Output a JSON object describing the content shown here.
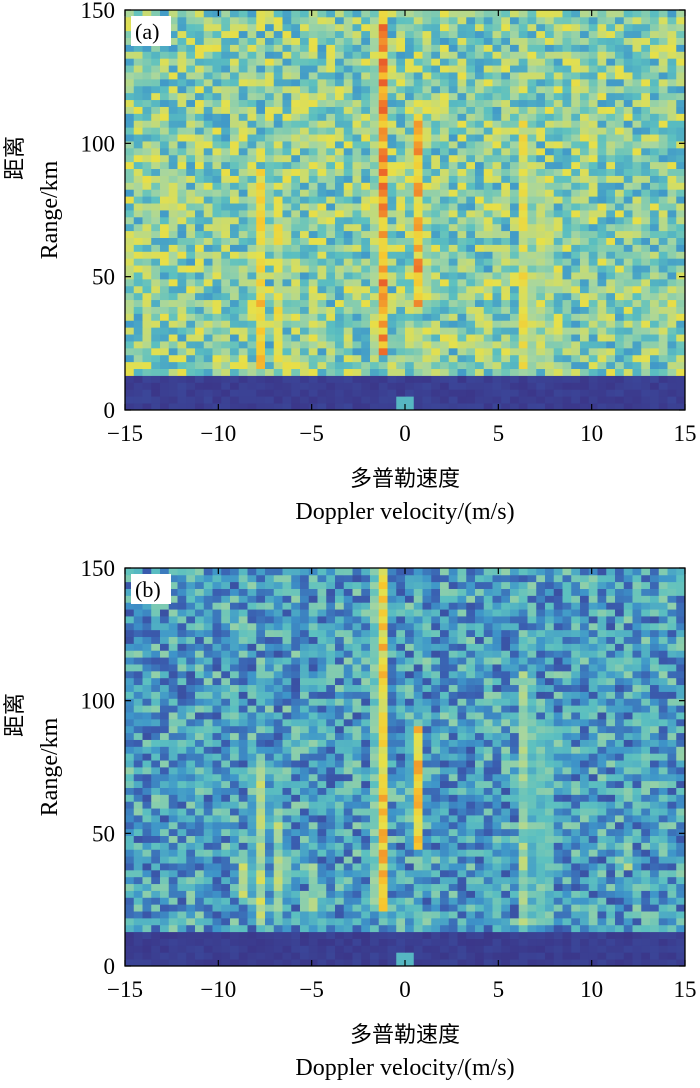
{
  "chart_data": [
    {
      "type": "heatmap",
      "panel_label": "(a)",
      "xlabel_cn": "多普勒速度",
      "xlabel": "Doppler velocity/(m/s)",
      "ylabel_cn": "距离",
      "ylabel": "Range/km",
      "xlim": [
        -15,
        15
      ],
      "ylim": [
        0,
        150
      ],
      "x_ticks": [
        "−15",
        "−10",
        "−5",
        "0",
        "5",
        "10",
        "15"
      ],
      "y_ticks": [
        "0",
        "50",
        "100",
        "150"
      ],
      "x_tick_values": [
        -15,
        -10,
        -5,
        0,
        5,
        10,
        15
      ],
      "y_tick_values": [
        0,
        50,
        100,
        150
      ],
      "colormap": [
        "#3b2f82",
        "#3a5eb0",
        "#3e95c9",
        "#5cc0c0",
        "#a6d6a0",
        "#e6e04a",
        "#f7c72e",
        "#ee6f2a",
        "#d7262b"
      ],
      "background_level": 0.45,
      "clutter_band_km": [
        0,
        12
      ],
      "ridges": [
        {
          "doppler": -1.3,
          "width": 0.45,
          "range": [
            20,
            150
          ],
          "peak": 0.95
        },
        {
          "doppler": 0.6,
          "width": 0.4,
          "range": [
            40,
            110
          ],
          "peak": 0.9
        },
        {
          "doppler": -7.8,
          "width": 0.45,
          "range": [
            15,
            90
          ],
          "peak": 0.78
        },
        {
          "doppler": -6.7,
          "width": 0.4,
          "range": [
            15,
            75
          ],
          "peak": 0.7
        },
        {
          "doppler": 6.5,
          "width": 0.45,
          "range": [
            15,
            110
          ],
          "peak": 0.8
        },
        {
          "doppler": 7.5,
          "width": 0.4,
          "range": [
            15,
            90
          ],
          "peak": 0.78
        },
        {
          "doppler": -4.8,
          "width": 0.35,
          "range": [
            20,
            50
          ],
          "peak": 0.7
        },
        {
          "doppler": 4.3,
          "width": 0.35,
          "range": [
            15,
            35
          ],
          "peak": 0.7
        },
        {
          "doppler": 11.8,
          "width": 0.3,
          "range": [
            42,
            55
          ],
          "peak": 0.72
        }
      ]
    },
    {
      "type": "heatmap",
      "panel_label": "(b)",
      "xlabel_cn": "多普勒速度",
      "xlabel": "Doppler velocity/(m/s)",
      "ylabel_cn": "距离",
      "ylabel": "Range/km",
      "xlim": [
        -15,
        15
      ],
      "ylim": [
        0,
        150
      ],
      "x_ticks": [
        "−15",
        "−10",
        "−5",
        "0",
        "5",
        "10",
        "15"
      ],
      "y_ticks": [
        "0",
        "50",
        "100",
        "150"
      ],
      "x_tick_values": [
        -15,
        -10,
        -5,
        0,
        5,
        10,
        15
      ],
      "y_tick_values": [
        0,
        50,
        100,
        150
      ],
      "colormap": [
        "#3b2f82",
        "#3a5eb0",
        "#3e95c9",
        "#5cc0c0",
        "#a6d6a0",
        "#e6e04a",
        "#f7c72e",
        "#ee6f2a",
        "#d7262b"
      ],
      "background_level": 0.28,
      "clutter_band_km": [
        0,
        12
      ],
      "ridges": [
        {
          "doppler": -1.3,
          "width": 0.45,
          "range": [
            20,
            150
          ],
          "peak": 0.85
        },
        {
          "doppler": 0.6,
          "width": 0.4,
          "range": [
            45,
            90
          ],
          "peak": 0.85
        },
        {
          "doppler": -7.8,
          "width": 0.5,
          "range": [
            15,
            80
          ],
          "peak": 0.62
        },
        {
          "doppler": -6.7,
          "width": 0.4,
          "range": [
            15,
            60
          ],
          "peak": 0.58
        },
        {
          "doppler": 6.5,
          "width": 0.45,
          "range": [
            15,
            110
          ],
          "peak": 0.62
        },
        {
          "doppler": 7.5,
          "width": 0.4,
          "range": [
            15,
            90
          ],
          "peak": 0.6
        },
        {
          "doppler": -8.8,
          "width": 0.3,
          "range": [
            25,
            38
          ],
          "peak": 0.72
        },
        {
          "doppler": -4.8,
          "width": 0.35,
          "range": [
            20,
            40
          ],
          "peak": 0.6
        },
        {
          "doppler": 11.8,
          "width": 0.35,
          "range": [
            35,
            50
          ],
          "peak": 0.65
        }
      ]
    }
  ]
}
